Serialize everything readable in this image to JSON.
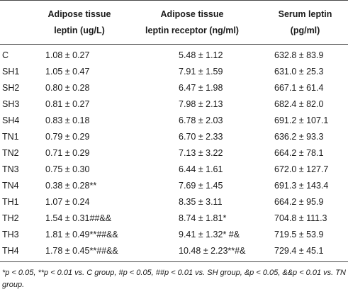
{
  "table": {
    "headers": [
      "",
      [
        "Adipose tissue",
        "leptin (ug/L)"
      ],
      [
        "Adipose tissue",
        "leptin receptor (ng/ml)"
      ],
      [
        "Serum leptin",
        "(pg/ml)"
      ]
    ],
    "rows": [
      [
        "C",
        "1.08 ± 0.27",
        "5.48 ± 1.12",
        "632.8 ± 83.9"
      ],
      [
        "SH1",
        "1.05 ± 0.47",
        "7.91 ± 1.59",
        "631.0 ± 25.3"
      ],
      [
        "SH2",
        "0.80 ± 0.28",
        "6.47 ± 1.98",
        "667.1 ± 61.4"
      ],
      [
        "SH3",
        "0.81 ± 0.27",
        "7.98 ± 2.13",
        "682.4 ± 82.0"
      ],
      [
        "SH4",
        "0.83 ± 0.18",
        "6.78 ± 2.03",
        "691.2 ± 107.1"
      ],
      [
        "TN1",
        "0.79 ± 0.29",
        "6.70 ± 2.33",
        "636.2 ± 93.3"
      ],
      [
        "TN2",
        "0.71 ± 0.29",
        "7.13 ± 3.22",
        "664.2 ± 78.1"
      ],
      [
        "TN3",
        "0.75 ± 0.30",
        "6.44 ± 1.61",
        "672.0 ± 127.7"
      ],
      [
        "TN4",
        "0.38 ± 0.28**",
        "7.69 ± 1.45",
        "691.3 ± 143.4"
      ],
      [
        "TH1",
        "1.07 ± 0.24",
        "8.35 ± 3.11",
        "664.2 ± 95.9"
      ],
      [
        "TH2",
        "1.54 ± 0.31##&&",
        "8.74 ± 1.81*",
        "704.8 ± 111.3"
      ],
      [
        "TH3",
        "1.81 ± 0.49**##&&",
        "9.41 ± 1.32* #&",
        "719.5 ± 53.9"
      ],
      [
        "TH4",
        "1.78 ± 0.45**##&&",
        "10.48 ± 2.23**#&",
        "729.4 ± 45.1"
      ]
    ]
  },
  "footnote": "*p < 0.05, **p < 0.01 vs. C group, #p < 0.05, ##p < 0.01 vs. SH group, &p < 0.05, &&p < 0.01 vs. TN group."
}
